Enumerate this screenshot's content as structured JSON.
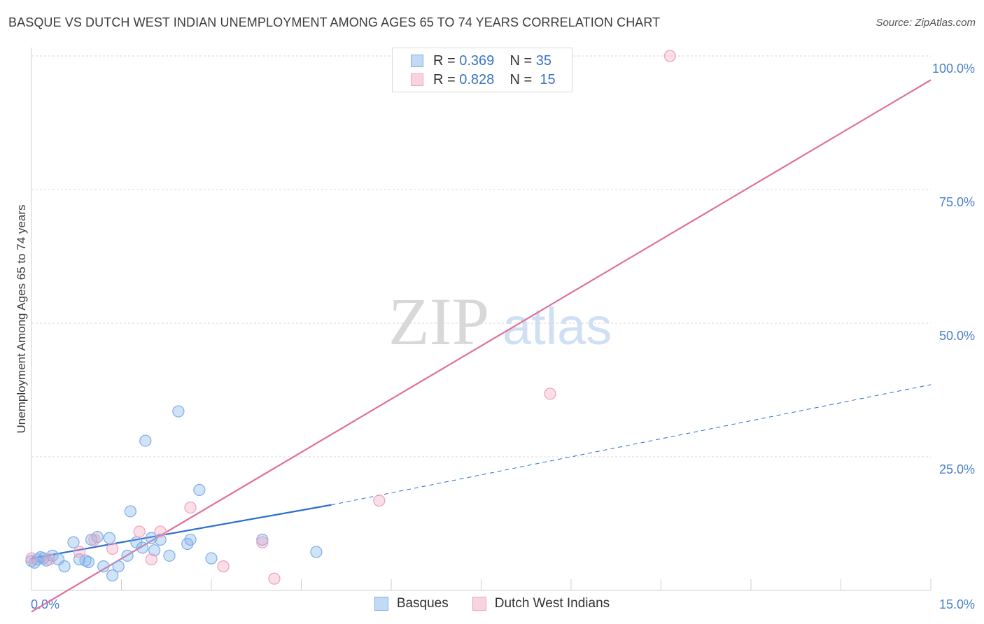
{
  "chart_data": {
    "type": "scatter",
    "title": "BASQUE VS DUTCH WEST INDIAN UNEMPLOYMENT AMONG AGES 65 TO 74 YEARS CORRELATION CHART",
    "source": "Source: ZipAtlas.com",
    "xlabel": "",
    "ylabel": "Unemployment Among Ages 65 to 74 years",
    "xlim": [
      0,
      15
    ],
    "ylim": [
      0,
      100
    ],
    "x_tick_labels": [
      "0.0%",
      "15.0%"
    ],
    "y_ticks": [
      25,
      50,
      75,
      100
    ],
    "y_tick_labels": [
      "25.0%",
      "50.0%",
      "75.0%",
      "100.0%"
    ],
    "watermark": {
      "zip": "ZIP",
      "atlas": "atlas"
    },
    "legend": [
      {
        "name": "Basques",
        "r_label": "R =",
        "r": "0.369",
        "n_label": "N =",
        "n": "35"
      },
      {
        "name": "Dutch West Indians",
        "r_label": "R =",
        "r": "0.828",
        "n_label": "N =",
        "n": "15"
      }
    ],
    "series": [
      {
        "name": "Basques",
        "color": "#7baee8",
        "fill": "rgba(123,174,232,0.35)",
        "line_color": "#2b6fcd",
        "points": [
          [
            0.0,
            5.5
          ],
          [
            0.1,
            5.8
          ],
          [
            0.2,
            6.0
          ],
          [
            0.25,
            5.6
          ],
          [
            0.35,
            6.5
          ],
          [
            0.45,
            5.8
          ],
          [
            0.55,
            4.5
          ],
          [
            0.7,
            9.0
          ],
          [
            0.8,
            5.8
          ],
          [
            0.9,
            5.6
          ],
          [
            0.95,
            5.3
          ],
          [
            1.0,
            9.5
          ],
          [
            1.1,
            10.0
          ],
          [
            1.2,
            4.5
          ],
          [
            1.3,
            9.8
          ],
          [
            1.35,
            2.8
          ],
          [
            1.45,
            4.5
          ],
          [
            1.6,
            6.5
          ],
          [
            1.65,
            14.8
          ],
          [
            1.75,
            9.0
          ],
          [
            1.85,
            8.0
          ],
          [
            1.9,
            28.0
          ],
          [
            2.0,
            9.8
          ],
          [
            2.05,
            7.5
          ],
          [
            2.15,
            9.5
          ],
          [
            2.3,
            6.5
          ],
          [
            2.45,
            33.5
          ],
          [
            2.6,
            8.7
          ],
          [
            2.65,
            9.5
          ],
          [
            2.8,
            18.8
          ],
          [
            3.85,
            9.5
          ],
          [
            4.75,
            7.2
          ],
          [
            0.05,
            5.2
          ],
          [
            0.15,
            6.2
          ],
          [
            3.0,
            6.0
          ]
        ],
        "trend_solid": [
          [
            0.0,
            6.0
          ],
          [
            5.0,
            16.0
          ]
        ],
        "trend_dashed": [
          [
            5.0,
            16.0
          ],
          [
            15.0,
            38.5
          ]
        ]
      },
      {
        "name": "Dutch West Indians",
        "color": "#f0a0bd",
        "fill": "rgba(240,160,189,0.35)",
        "line_color": "#e0709a",
        "points": [
          [
            0.0,
            6.0
          ],
          [
            0.8,
            7.2
          ],
          [
            1.05,
            9.5
          ],
          [
            1.35,
            7.8
          ],
          [
            1.8,
            11.0
          ],
          [
            2.0,
            5.8
          ],
          [
            2.15,
            11.0
          ],
          [
            2.65,
            15.5
          ],
          [
            3.2,
            4.5
          ],
          [
            3.85,
            9.0
          ],
          [
            4.05,
            2.2
          ],
          [
            5.8,
            16.8
          ],
          [
            8.65,
            36.8
          ],
          [
            10.65,
            100.0
          ],
          [
            0.3,
            5.8
          ]
        ],
        "trend_solid": [
          [
            0.0,
            -4.0
          ],
          [
            15.0,
            95.5
          ]
        ]
      }
    ]
  }
}
